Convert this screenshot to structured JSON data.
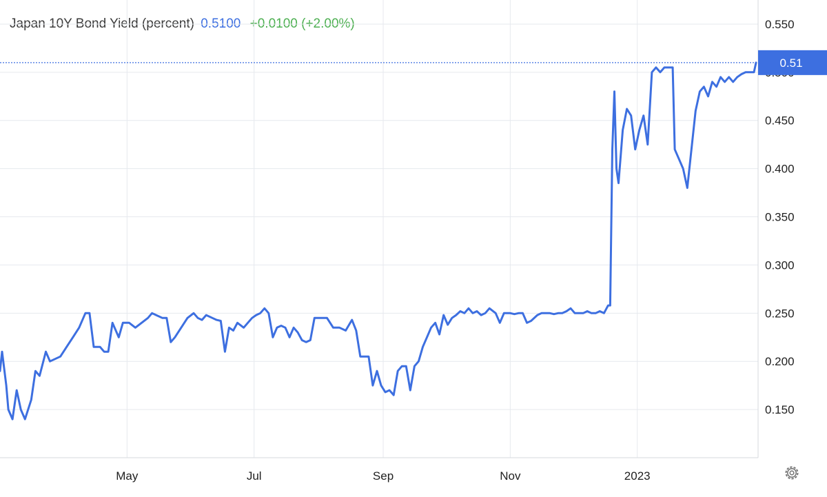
{
  "header": {
    "name": "Japan 10Y Bond Yield (percent)",
    "last": "0.5100",
    "change": "+0.0100 (+2.00%)"
  },
  "colors": {
    "line": "#3d6fe0",
    "change_positive": "#4caf50",
    "grid": "#e6e9ee"
  },
  "settings_icon": "gear-icon",
  "chart_data": {
    "type": "line",
    "title": "Japan 10Y Bond Yield (percent)",
    "last_value_label": "0.51",
    "ylim": [
      0.1,
      0.575
    ],
    "yticks": [
      0.15,
      0.2,
      0.25,
      0.3,
      0.35,
      0.4,
      0.45,
      0.5,
      0.55
    ],
    "ytick_labels": [
      "0.150",
      "0.200",
      "0.250",
      "0.300",
      "0.350",
      "0.400",
      "0.450",
      "0.500",
      "0.550"
    ],
    "xlim": [
      "2022-03-01",
      "2023-02-28"
    ],
    "xticks": [
      {
        "date": "2022-05-01",
        "label": "May"
      },
      {
        "date": "2022-07-01",
        "label": "Jul"
      },
      {
        "date": "2022-09-01",
        "label": "Sep"
      },
      {
        "date": "2022-11-01",
        "label": "Nov"
      },
      {
        "date": "2023-01-01",
        "label": "2023"
      }
    ],
    "grid": true,
    "series": [
      {
        "points": [
          [
            "2022-03-01",
            0.19
          ],
          [
            "2022-03-02",
            0.21
          ],
          [
            "2022-03-04",
            0.175
          ],
          [
            "2022-03-05",
            0.15
          ],
          [
            "2022-03-07",
            0.14
          ],
          [
            "2022-03-09",
            0.17
          ],
          [
            "2022-03-11",
            0.15
          ],
          [
            "2022-03-13",
            0.14
          ],
          [
            "2022-03-16",
            0.16
          ],
          [
            "2022-03-18",
            0.19
          ],
          [
            "2022-03-20",
            0.185
          ],
          [
            "2022-03-23",
            0.21
          ],
          [
            "2022-03-25",
            0.2
          ],
          [
            "2022-03-30",
            0.205
          ],
          [
            "2022-04-02",
            0.215
          ],
          [
            "2022-04-05",
            0.225
          ],
          [
            "2022-04-08",
            0.235
          ],
          [
            "2022-04-11",
            0.25
          ],
          [
            "2022-04-13",
            0.25
          ],
          [
            "2022-04-15",
            0.215
          ],
          [
            "2022-04-18",
            0.215
          ],
          [
            "2022-04-20",
            0.21
          ],
          [
            "2022-04-22",
            0.21
          ],
          [
            "2022-04-24",
            0.24
          ],
          [
            "2022-04-27",
            0.225
          ],
          [
            "2022-04-29",
            0.24
          ],
          [
            "2022-05-02",
            0.24
          ],
          [
            "2022-05-05",
            0.235
          ],
          [
            "2022-05-08",
            0.24
          ],
          [
            "2022-05-11",
            0.245
          ],
          [
            "2022-05-13",
            0.25
          ],
          [
            "2022-05-15",
            0.248
          ],
          [
            "2022-05-18",
            0.245
          ],
          [
            "2022-05-20",
            0.245
          ],
          [
            "2022-05-22",
            0.22
          ],
          [
            "2022-05-24",
            0.225
          ],
          [
            "2022-05-27",
            0.235
          ],
          [
            "2022-05-30",
            0.245
          ],
          [
            "2022-06-02",
            0.25
          ],
          [
            "2022-06-04",
            0.245
          ],
          [
            "2022-06-06",
            0.243
          ],
          [
            "2022-06-08",
            0.248
          ],
          [
            "2022-06-11",
            0.245
          ],
          [
            "2022-06-13",
            0.243
          ],
          [
            "2022-06-15",
            0.242
          ],
          [
            "2022-06-17",
            0.21
          ],
          [
            "2022-06-19",
            0.235
          ],
          [
            "2022-06-21",
            0.232
          ],
          [
            "2022-06-23",
            0.24
          ],
          [
            "2022-06-26",
            0.235
          ],
          [
            "2022-06-28",
            0.24
          ],
          [
            "2022-06-30",
            0.245
          ],
          [
            "2022-07-02",
            0.248
          ],
          [
            "2022-07-04",
            0.25
          ],
          [
            "2022-07-06",
            0.255
          ],
          [
            "2022-07-08",
            0.25
          ],
          [
            "2022-07-10",
            0.225
          ],
          [
            "2022-07-12",
            0.235
          ],
          [
            "2022-07-14",
            0.237
          ],
          [
            "2022-07-16",
            0.235
          ],
          [
            "2022-07-18",
            0.225
          ],
          [
            "2022-07-20",
            0.235
          ],
          [
            "2022-07-22",
            0.23
          ],
          [
            "2022-07-24",
            0.222
          ],
          [
            "2022-07-26",
            0.22
          ],
          [
            "2022-07-28",
            0.222
          ],
          [
            "2022-07-30",
            0.245
          ],
          [
            "2022-08-02",
            0.245
          ],
          [
            "2022-08-05",
            0.245
          ],
          [
            "2022-08-08",
            0.235
          ],
          [
            "2022-08-11",
            0.235
          ],
          [
            "2022-08-14",
            0.232
          ],
          [
            "2022-08-17",
            0.243
          ],
          [
            "2022-08-19",
            0.232
          ],
          [
            "2022-08-21",
            0.205
          ],
          [
            "2022-08-23",
            0.205
          ],
          [
            "2022-08-25",
            0.205
          ],
          [
            "2022-08-27",
            0.175
          ],
          [
            "2022-08-29",
            0.19
          ],
          [
            "2022-08-31",
            0.175
          ],
          [
            "2022-09-02",
            0.168
          ],
          [
            "2022-09-04",
            0.17
          ],
          [
            "2022-09-06",
            0.165
          ],
          [
            "2022-09-08",
            0.19
          ],
          [
            "2022-09-10",
            0.195
          ],
          [
            "2022-09-12",
            0.195
          ],
          [
            "2022-09-14",
            0.17
          ],
          [
            "2022-09-16",
            0.195
          ],
          [
            "2022-09-18",
            0.2
          ],
          [
            "2022-09-20",
            0.215
          ],
          [
            "2022-09-22",
            0.225
          ],
          [
            "2022-09-24",
            0.235
          ],
          [
            "2022-09-26",
            0.24
          ],
          [
            "2022-09-28",
            0.228
          ],
          [
            "2022-09-30",
            0.248
          ],
          [
            "2022-10-02",
            0.238
          ],
          [
            "2022-10-04",
            0.245
          ],
          [
            "2022-10-06",
            0.248
          ],
          [
            "2022-10-08",
            0.252
          ],
          [
            "2022-10-10",
            0.25
          ],
          [
            "2022-10-12",
            0.255
          ],
          [
            "2022-10-14",
            0.25
          ],
          [
            "2022-10-16",
            0.252
          ],
          [
            "2022-10-18",
            0.248
          ],
          [
            "2022-10-20",
            0.25
          ],
          [
            "2022-10-22",
            0.255
          ],
          [
            "2022-10-25",
            0.25
          ],
          [
            "2022-10-27",
            0.24
          ],
          [
            "2022-10-29",
            0.25
          ],
          [
            "2022-11-01",
            0.25
          ],
          [
            "2022-11-03",
            0.249
          ],
          [
            "2022-11-05",
            0.25
          ],
          [
            "2022-11-07",
            0.25
          ],
          [
            "2022-11-09",
            0.24
          ],
          [
            "2022-11-11",
            0.242
          ],
          [
            "2022-11-14",
            0.248
          ],
          [
            "2022-11-16",
            0.25
          ],
          [
            "2022-11-18",
            0.25
          ],
          [
            "2022-11-20",
            0.25
          ],
          [
            "2022-11-22",
            0.249
          ],
          [
            "2022-11-24",
            0.25
          ],
          [
            "2022-11-26",
            0.25
          ],
          [
            "2022-11-28",
            0.252
          ],
          [
            "2022-11-30",
            0.255
          ],
          [
            "2022-12-02",
            0.25
          ],
          [
            "2022-12-04",
            0.25
          ],
          [
            "2022-12-06",
            0.25
          ],
          [
            "2022-12-08",
            0.252
          ],
          [
            "2022-12-10",
            0.25
          ],
          [
            "2022-12-12",
            0.25
          ],
          [
            "2022-12-14",
            0.252
          ],
          [
            "2022-12-16",
            0.25
          ],
          [
            "2022-12-18",
            0.258
          ],
          [
            "2022-12-19",
            0.258
          ],
          [
            "2022-12-20",
            0.42
          ],
          [
            "2022-12-21",
            0.48
          ],
          [
            "2022-12-22",
            0.4
          ],
          [
            "2022-12-23",
            0.385
          ],
          [
            "2022-12-25",
            0.44
          ],
          [
            "2022-12-27",
            0.462
          ],
          [
            "2022-12-29",
            0.455
          ],
          [
            "2022-12-31",
            0.42
          ],
          [
            "2023-01-02",
            0.44
          ],
          [
            "2023-01-04",
            0.455
          ],
          [
            "2023-01-06",
            0.425
          ],
          [
            "2023-01-08",
            0.5
          ],
          [
            "2023-01-10",
            0.505
          ],
          [
            "2023-01-12",
            0.5
          ],
          [
            "2023-01-14",
            0.505
          ],
          [
            "2023-01-16",
            0.505
          ],
          [
            "2023-01-18",
            0.505
          ],
          [
            "2023-01-19",
            0.42
          ],
          [
            "2023-01-21",
            0.41
          ],
          [
            "2023-01-23",
            0.4
          ],
          [
            "2023-01-25",
            0.38
          ],
          [
            "2023-01-27",
            0.42
          ],
          [
            "2023-01-29",
            0.46
          ],
          [
            "2023-01-31",
            0.48
          ],
          [
            "2023-02-02",
            0.485
          ],
          [
            "2023-02-04",
            0.475
          ],
          [
            "2023-02-06",
            0.49
          ],
          [
            "2023-02-08",
            0.485
          ],
          [
            "2023-02-10",
            0.495
          ],
          [
            "2023-02-12",
            0.49
          ],
          [
            "2023-02-14",
            0.495
          ],
          [
            "2023-02-16",
            0.49
          ],
          [
            "2023-02-18",
            0.495
          ],
          [
            "2023-02-20",
            0.498
          ],
          [
            "2023-02-22",
            0.5
          ],
          [
            "2023-02-24",
            0.5
          ],
          [
            "2023-02-26",
            0.5
          ],
          [
            "2023-02-27",
            0.51
          ]
        ]
      }
    ]
  }
}
